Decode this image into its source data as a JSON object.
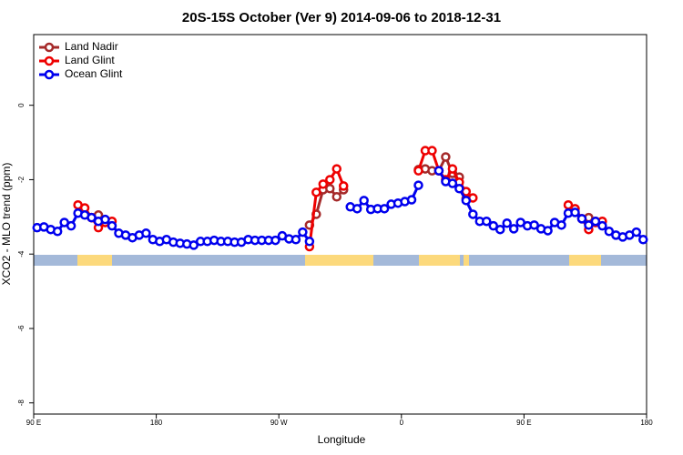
{
  "chart_data": {
    "type": "line",
    "title": "20S-15S October (Ver 9)   2014-09-06 to 2018-12-31",
    "x_label": "Longitude",
    "y_label": "XCO2 - MLO trend (ppm)",
    "xlim": [
      90,
      540
    ],
    "ylim": [
      -8.3,
      1.9
    ],
    "xticks": [
      {
        "value": 90,
        "label": "90 E"
      },
      {
        "value": 180,
        "label": "180"
      },
      {
        "value": 270,
        "label": "90 W"
      },
      {
        "value": 360,
        "label": "0"
      },
      {
        "value": 450,
        "label": "90 E"
      },
      {
        "value": 540,
        "label": "180"
      }
    ],
    "yticks": [
      0,
      -2,
      -4,
      -6,
      -8
    ],
    "legend": "topleft",
    "grid": false,
    "series": [
      {
        "name": "Land Nadir",
        "color": "#a52a2a",
        "x": [
          132.5,
          137.5,
          142.5,
          null,
          292.5,
          297.5,
          302.5,
          307.5,
          312.5,
          317.5,
          null,
          372.5,
          377.5,
          382.5,
          387.5,
          392.5,
          397.5,
          402.5,
          407.5,
          null,
          497.5,
          502.5
        ],
        "values": [
          -3.02,
          -2.95,
          -3.12,
          null,
          -3.22,
          -2.93,
          -2.27,
          -2.24,
          -2.46,
          -2.27,
          null,
          -1.73,
          -1.71,
          -1.76,
          -1.76,
          -1.39,
          -1.83,
          -1.93,
          -2.51,
          null,
          -3.02,
          -3.12
        ]
      },
      {
        "name": "Land Glint",
        "color": "#ee0000",
        "x": [
          122.5,
          127.5,
          132.5,
          137.5,
          142.5,
          147.5,
          null,
          292.5,
          297.5,
          302.5,
          307.5,
          312.5,
          317.5,
          null,
          372.5,
          377.5,
          382.5,
          387.5,
          392.5,
          397.5,
          402.5,
          407.5,
          412.5,
          null,
          482.5,
          487.5,
          492.5,
          497.5,
          502.5,
          507.5
        ],
        "values": [
          -2.68,
          -2.76,
          -3.02,
          -3.29,
          -3.15,
          -3.12,
          null,
          -3.8,
          -2.34,
          -2.12,
          -2.0,
          -1.71,
          -2.17,
          null,
          -1.76,
          -1.22,
          -1.22,
          -1.76,
          -2.0,
          -1.71,
          -2.07,
          -2.32,
          -2.49,
          null,
          -2.68,
          -2.78,
          -3.05,
          -3.34,
          -3.15,
          -3.12
        ]
      },
      {
        "name": "Ocean Glint",
        "color": "#0000ee",
        "x": [
          92.5,
          97.5,
          102.5,
          107.5,
          112.5,
          117.5,
          122.5,
          127.5,
          132.5,
          137.5,
          142.5,
          147.5,
          152.5,
          157.5,
          162.5,
          167.5,
          172.5,
          177.5,
          182.5,
          187.5,
          192.5,
          197.5,
          202.5,
          207.5,
          212.5,
          217.5,
          222.5,
          227.5,
          232.5,
          237.5,
          242.5,
          247.5,
          252.5,
          257.5,
          262.5,
          267.5,
          272.5,
          277.5,
          282.5,
          287.5,
          292.5,
          297.5,
          302.5,
          307.5,
          312.5,
          317.5,
          322.5,
          327.5,
          332.5,
          337.5,
          342.5,
          347.5,
          352.5,
          357.5,
          362.5,
          367.5,
          372.5,
          377.5,
          382.5,
          387.5,
          392.5,
          397.5,
          402.5,
          407.5,
          412.5,
          417.5,
          422.5,
          427.5,
          432.5,
          437.5,
          442.5,
          447.5,
          452.5,
          457.5,
          462.5,
          467.5,
          472.5,
          477.5,
          482.5,
          487.5,
          492.5,
          497.5,
          502.5,
          507.5,
          512.5,
          517.5,
          522.5,
          527.5,
          532.5,
          537.5
        ],
        "values": [
          -3.29,
          -3.27,
          -3.34,
          -3.39,
          -3.15,
          -3.24,
          -2.9,
          -2.95,
          -3.02,
          -3.12,
          -3.07,
          -3.24,
          -3.44,
          -3.49,
          -3.56,
          -3.49,
          -3.44,
          -3.61,
          -3.66,
          -3.61,
          -3.68,
          -3.71,
          -3.73,
          -3.76,
          -3.66,
          -3.66,
          -3.63,
          -3.66,
          -3.66,
          -3.68,
          -3.68,
          -3.61,
          -3.63,
          -3.63,
          -3.63,
          -3.63,
          -3.51,
          -3.59,
          -3.61,
          -3.41,
          -3.66,
          null,
          null,
          null,
          null,
          null,
          -2.73,
          -2.78,
          -2.56,
          -2.8,
          -2.78,
          -2.78,
          -2.66,
          -2.63,
          -2.59,
          -2.54,
          -2.15,
          null,
          null,
          -1.76,
          -2.05,
          -2.1,
          -2.24,
          -2.56,
          -2.93,
          -3.12,
          -3.12,
          -3.24,
          -3.34,
          -3.17,
          -3.32,
          -3.15,
          -3.24,
          -3.22,
          -3.32,
          -3.37,
          -3.15,
          -3.22,
          -2.9,
          -2.88,
          -3.05,
          -3.22,
          -3.12,
          -3.24,
          -3.39,
          -3.49,
          -3.54,
          -3.49,
          -3.41,
          -3.61
        ]
      }
    ]
  }
}
